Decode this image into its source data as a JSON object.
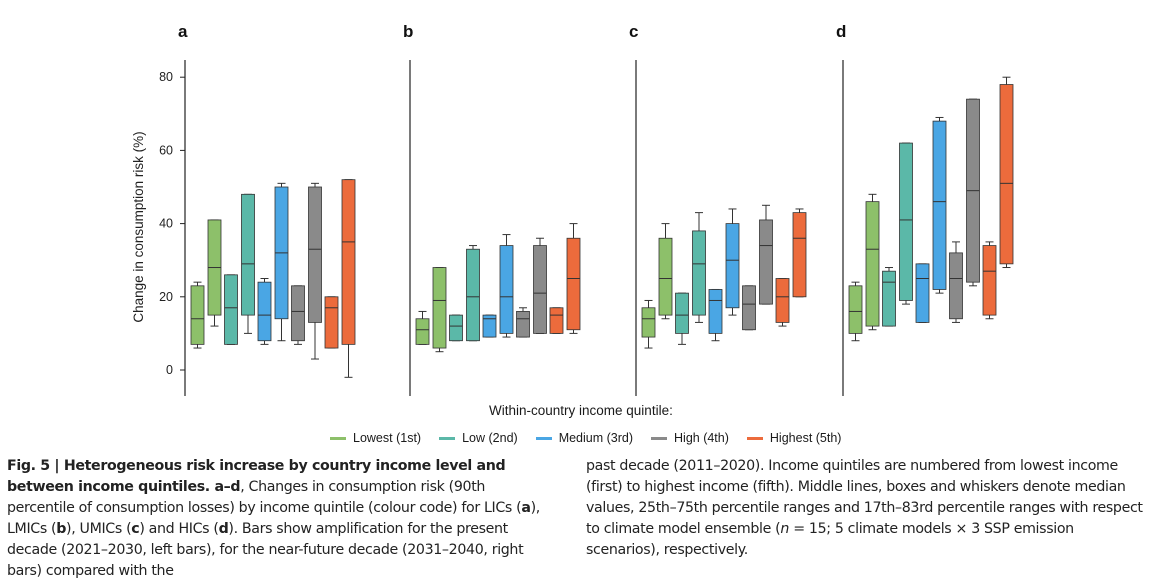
{
  "chart_data": {
    "type": "box",
    "ylabel": "Change in consumption risk (%)",
    "xlabel": "Within-country income quintile:",
    "ylim": [
      -7,
      88
    ],
    "yticks": [
      0,
      20,
      40,
      60,
      80
    ],
    "panels": [
      {
        "label": "a",
        "groups": [
          {
            "series": "Lowest (1st)",
            "present": {
              "w": [
                6,
                24
              ],
              "q": [
                7,
                23
              ],
              "m": 14
            },
            "future": {
              "w": [
                12,
                41
              ],
              "q": [
                15,
                41
              ],
              "m": 28
            }
          },
          {
            "series": "Low (2nd)",
            "present": {
              "w": [
                7,
                26
              ],
              "q": [
                7,
                26
              ],
              "m": 17
            },
            "future": {
              "w": [
                10,
                48
              ],
              "q": [
                15,
                48
              ],
              "m": 29
            }
          },
          {
            "series": "Medium (3rd)",
            "present": {
              "w": [
                7,
                25
              ],
              "q": [
                8,
                24
              ],
              "m": 15
            },
            "future": {
              "w": [
                8,
                51
              ],
              "q": [
                14,
                50
              ],
              "m": 32
            }
          },
          {
            "series": "High (4th)",
            "present": {
              "w": [
                7,
                23
              ],
              "q": [
                8,
                23
              ],
              "m": 16
            },
            "future": {
              "w": [
                3,
                51
              ],
              "q": [
                13,
                50
              ],
              "m": 33
            }
          },
          {
            "series": "Highest (5th)",
            "present": {
              "w": [
                6,
                20
              ],
              "q": [
                6,
                20
              ],
              "m": 17
            },
            "future": {
              "w": [
                -2,
                52
              ],
              "q": [
                7,
                52
              ],
              "m": 35
            }
          }
        ]
      },
      {
        "label": "b",
        "groups": [
          {
            "series": "Lowest (1st)",
            "present": {
              "w": [
                7,
                16
              ],
              "q": [
                7,
                14
              ],
              "m": 11
            },
            "future": {
              "w": [
                5,
                28
              ],
              "q": [
                6,
                28
              ],
              "m": 19
            }
          },
          {
            "series": "Low (2nd)",
            "present": {
              "w": [
                8,
                15
              ],
              "q": [
                8,
                15
              ],
              "m": 12
            },
            "future": {
              "w": [
                8,
                34
              ],
              "q": [
                8,
                33
              ],
              "m": 20
            }
          },
          {
            "series": "Medium (3rd)",
            "present": {
              "w": [
                9,
                15
              ],
              "q": [
                9,
                15
              ],
              "m": 14
            },
            "future": {
              "w": [
                9,
                37
              ],
              "q": [
                10,
                34
              ],
              "m": 20
            }
          },
          {
            "series": "High (4th)",
            "present": {
              "w": [
                9,
                17
              ],
              "q": [
                9,
                16
              ],
              "m": 14
            },
            "future": {
              "w": [
                10,
                36
              ],
              "q": [
                10,
                34
              ],
              "m": 21
            }
          },
          {
            "series": "Highest (5th)",
            "present": {
              "w": [
                10,
                17
              ],
              "q": [
                10,
                17
              ],
              "m": 15
            },
            "future": {
              "w": [
                10,
                40
              ],
              "q": [
                11,
                36
              ],
              "m": 25
            }
          }
        ]
      },
      {
        "label": "c",
        "groups": [
          {
            "series": "Lowest (1st)",
            "present": {
              "w": [
                6,
                19
              ],
              "q": [
                9,
                17
              ],
              "m": 14
            },
            "future": {
              "w": [
                14,
                40
              ],
              "q": [
                15,
                36
              ],
              "m": 25
            }
          },
          {
            "series": "Low (2nd)",
            "present": {
              "w": [
                7,
                21
              ],
              "q": [
                10,
                21
              ],
              "m": 15
            },
            "future": {
              "w": [
                13,
                43
              ],
              "q": [
                15,
                38
              ],
              "m": 29
            }
          },
          {
            "series": "Medium (3rd)",
            "present": {
              "w": [
                8,
                22
              ],
              "q": [
                10,
                22
              ],
              "m": 19
            },
            "future": {
              "w": [
                15,
                44
              ],
              "q": [
                17,
                40
              ],
              "m": 30
            }
          },
          {
            "series": "High (4th)",
            "present": {
              "w": [
                11,
                23
              ],
              "q": [
                11,
                23
              ],
              "m": 18
            },
            "future": {
              "w": [
                18,
                45
              ],
              "q": [
                18,
                41
              ],
              "m": 34
            }
          },
          {
            "series": "Highest (5th)",
            "present": {
              "w": [
                12,
                25
              ],
              "q": [
                13,
                25
              ],
              "m": 20
            },
            "future": {
              "w": [
                20,
                44
              ],
              "q": [
                20,
                43
              ],
              "m": 36
            }
          }
        ]
      },
      {
        "label": "d",
        "groups": [
          {
            "series": "Lowest (1st)",
            "present": {
              "w": [
                8,
                24
              ],
              "q": [
                10,
                23
              ],
              "m": 16
            },
            "future": {
              "w": [
                11,
                48
              ],
              "q": [
                12,
                46
              ],
              "m": 33
            }
          },
          {
            "series": "Low (2nd)",
            "present": {
              "w": [
                12,
                28
              ],
              "q": [
                12,
                27
              ],
              "m": 24
            },
            "future": {
              "w": [
                18,
                62
              ],
              "q": [
                19,
                62
              ],
              "m": 41
            }
          },
          {
            "series": "Medium (3rd)",
            "present": {
              "w": [
                13,
                29
              ],
              "q": [
                13,
                29
              ],
              "m": 25
            },
            "future": {
              "w": [
                21,
                69
              ],
              "q": [
                22,
                68
              ],
              "m": 46
            }
          },
          {
            "series": "High (4th)",
            "present": {
              "w": [
                13,
                35
              ],
              "q": [
                14,
                32
              ],
              "m": 25
            },
            "future": {
              "w": [
                23,
                74
              ],
              "q": [
                24,
                74
              ],
              "m": 49
            }
          },
          {
            "series": "Highest (5th)",
            "present": {
              "w": [
                14,
                35
              ],
              "q": [
                15,
                34
              ],
              "m": 27
            },
            "future": {
              "w": [
                28,
                80
              ],
              "q": [
                29,
                78
              ],
              "m": 51
            }
          }
        ]
      }
    ]
  },
  "legend": {
    "items": [
      {
        "label": "Lowest (1st)",
        "color": "#8dc06a"
      },
      {
        "label": "Low (2nd)",
        "color": "#5bb8a8"
      },
      {
        "label": "Medium (3rd)",
        "color": "#4aa6e4"
      },
      {
        "label": "High (4th)",
        "color": "#8a8a8a"
      },
      {
        "label": "Highest (5th)",
        "color": "#ec6b3c"
      }
    ]
  },
  "caption": {
    "left_bold": "Fig. 5 | Heterogeneous risk increase by country income level and between income quintiles. a–d",
    "left_text_1": ", Changes in consumption risk (90th percentile of consumption losses) by income quintile (colour code) for LICs (",
    "a": "a",
    "left_text_2": "), LMICs (",
    "b": "b",
    "left_text_3": "), UMICs (",
    "c": "c",
    "left_text_4": ") and HICs (",
    "d": "d",
    "left_text_5": "). Bars show amplification for the present decade (2021–2030, left bars), for the near-future decade (2031–2040, right bars) compared with the",
    "right_text_1": "past decade (2011–2020). Income quintiles are numbered from lowest income (first) to highest income (fifth). Middle lines, boxes and whiskers denote median values, 25th–75th percentile ranges and 17th–83rd percentile ranges with respect to climate model ensemble (",
    "n": "n",
    "right_text_2": " = 15; 5 climate models × 3 SSP emission scenarios), respectively."
  }
}
